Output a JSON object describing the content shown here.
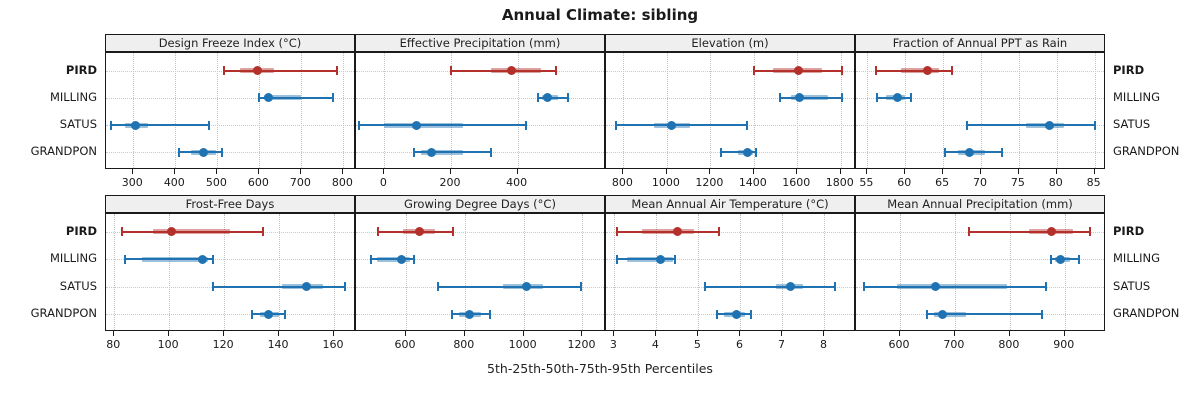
{
  "chart_data": {
    "type": "scatter",
    "variant": "trellis-dotplot-percentile-intervals",
    "title": "Annual Climate: sibling",
    "xlabel": "5th-25th-50th-75th-95th Percentiles",
    "groups": [
      "PIRD",
      "MILLING",
      "SATUS",
      "GRANDPON"
    ],
    "highlight_group": "PIRD",
    "percentile_levels": [
      5,
      25,
      50,
      75,
      95
    ],
    "legend_position": "none",
    "grid": "dotted",
    "colors": {
      "highlight": "#b4302a",
      "highlight_band": "rgba(180,48,42,0.45)",
      "normal": "#1f73b2",
      "normal_band": "rgba(31,115,178,0.45)",
      "strip_bg": "#efefef",
      "border": "#1a1a1a",
      "gridline": "#c3c3c3"
    },
    "panels": [
      {
        "label": "Design Freeze Index (°C)",
        "row": 0,
        "col": 0,
        "xlim": [
          235,
          830
        ],
        "ticks": [
          300,
          400,
          500,
          600,
          700,
          800
        ],
        "values": [
          [
            515,
            555,
            595,
            635,
            785
          ],
          [
            600,
            612,
            622,
            700,
            775
          ],
          [
            248,
            280,
            305,
            335,
            480
          ],
          [
            408,
            438,
            468,
            497,
            512
          ]
        ]
      },
      {
        "label": "Effective Precipitation (mm)",
        "row": 0,
        "col": 1,
        "xlim": [
          -85,
          665
        ],
        "ticks": [
          0,
          200,
          400
        ],
        "values": [
          [
            200,
            320,
            380,
            470,
            515
          ],
          [
            462,
            472,
            488,
            520,
            550
          ],
          [
            -75,
            0,
            95,
            235,
            425
          ],
          [
            90,
            110,
            142,
            235,
            320
          ]
        ]
      },
      {
        "label": "Elevation (m)",
        "row": 0,
        "col": 2,
        "xlim": [
          720,
          1870
        ],
        "ticks": [
          800,
          1000,
          1200,
          1400,
          1600,
          1800
        ],
        "values": [
          [
            1400,
            1490,
            1605,
            1715,
            1805
          ],
          [
            1520,
            1570,
            1608,
            1740,
            1805
          ],
          [
            765,
            940,
            1020,
            1105,
            1370
          ],
          [
            1250,
            1325,
            1372,
            1398,
            1412
          ]
        ]
      },
      {
        "label": "Fraction of Annual PPT as Rain",
        "row": 0,
        "col": 3,
        "xlim": [
          53.5,
          86.5
        ],
        "ticks": [
          55,
          60,
          65,
          70,
          75,
          80,
          85
        ],
        "values": [
          [
            56.2,
            59.5,
            63,
            64.5,
            66.2
          ],
          [
            56.3,
            57.5,
            59,
            60,
            60.8
          ],
          [
            68.2,
            76,
            79,
            81,
            85
          ],
          [
            65.2,
            67,
            68.5,
            70.5,
            72.8
          ]
        ]
      },
      {
        "label": "Frost-Free Days",
        "row": 1,
        "col": 0,
        "xlim": [
          77,
          168
        ],
        "ticks": [
          80,
          100,
          120,
          140,
          160
        ],
        "values": [
          [
            83,
            94,
            101,
            122,
            134
          ],
          [
            84,
            90,
            112,
            114,
            116
          ],
          [
            116,
            141,
            150,
            156,
            164
          ],
          [
            130,
            133,
            136,
            140,
            142
          ]
        ]
      },
      {
        "label": "Growing Degree Days (°C)",
        "row": 1,
        "col": 1,
        "xlim": [
          430,
          1280
        ],
        "ticks": [
          600,
          800,
          1000,
          1200
        ],
        "values": [
          [
            505,
            590,
            645,
            700,
            760
          ],
          [
            480,
            500,
            585,
            615,
            628
          ],
          [
            710,
            930,
            1010,
            1065,
            1195
          ],
          [
            755,
            780,
            815,
            855,
            885
          ]
        ]
      },
      {
        "label": "Mean Annual Air Temperature (°C)",
        "row": 1,
        "col": 2,
        "xlim": [
          2.8,
          8.75
        ],
        "ticks": [
          3,
          4,
          5,
          6,
          7,
          8
        ],
        "values": [
          [
            3.05,
            3.65,
            4.5,
            4.9,
            5.5
          ],
          [
            3.05,
            3.3,
            4.1,
            4.4,
            4.45
          ],
          [
            5.15,
            6.85,
            7.2,
            7.5,
            8.25
          ],
          [
            5.45,
            5.6,
            5.9,
            6.1,
            6.25
          ]
        ]
      },
      {
        "label": "Mean Annual Precipitation (mm)",
        "row": 1,
        "col": 3,
        "xlim": [
          520,
          975
        ],
        "ticks": [
          600,
          700,
          800,
          900
        ],
        "values": [
          [
            725,
            835,
            875,
            915,
            945
          ],
          [
            875,
            882,
            893,
            910,
            925
          ],
          [
            535,
            595,
            665,
            795,
            865
          ],
          [
            650,
            662,
            678,
            720,
            858
          ]
        ]
      }
    ]
  }
}
